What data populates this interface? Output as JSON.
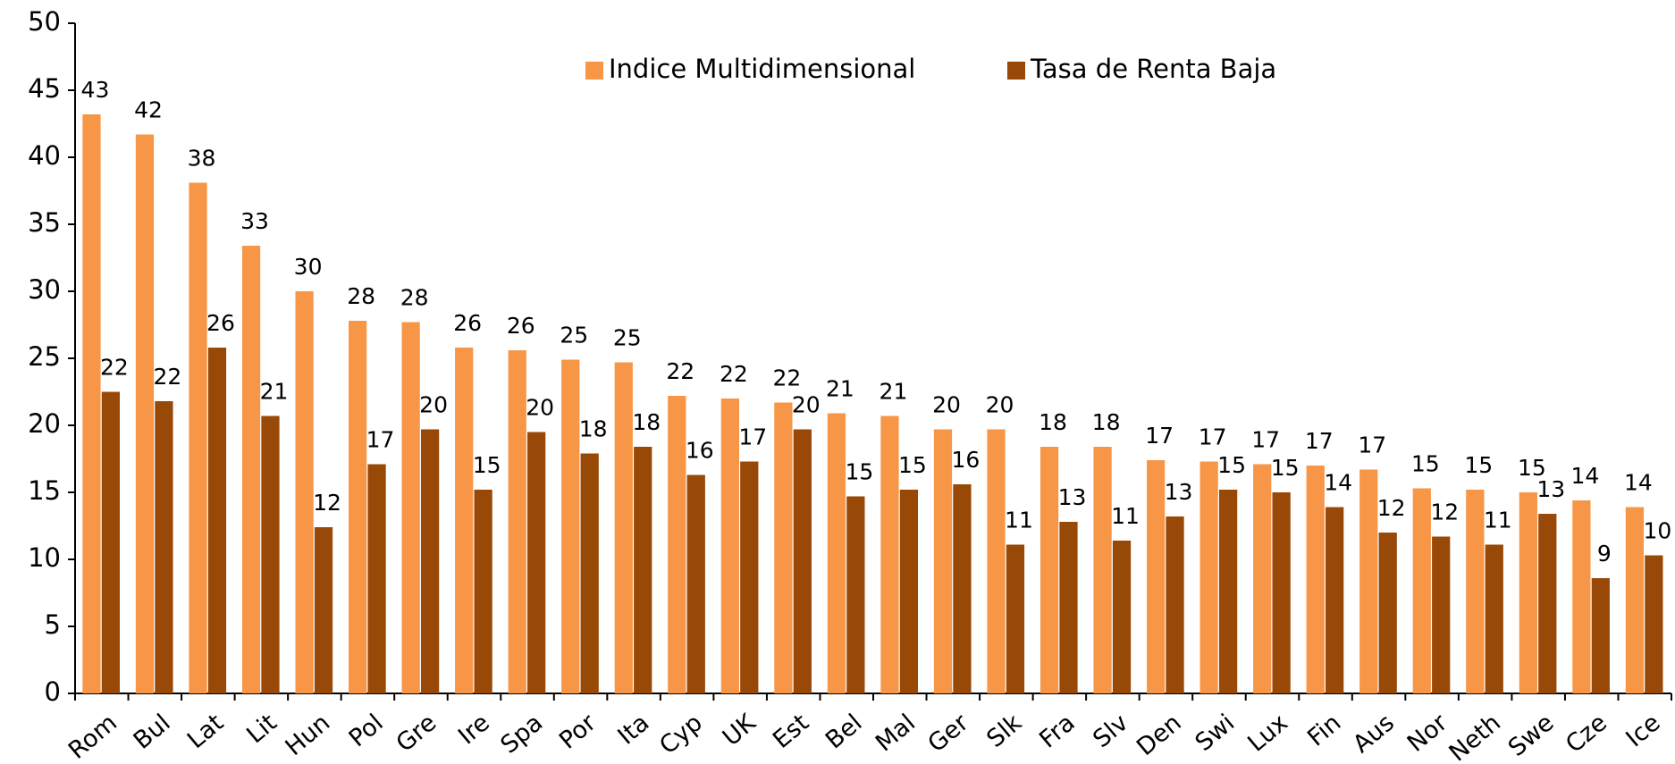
{
  "chart_data": {
    "type": "bar",
    "categories": [
      "Rom",
      "Bul",
      "Lat",
      "Lit",
      "Hun",
      "Pol",
      "Gre",
      "Ire",
      "Spa",
      "Por",
      "Ita",
      "Cyp",
      "UK",
      "Est",
      "Bel",
      "Mal",
      "Ger",
      "Slk",
      "Fra",
      "Slv",
      "Den",
      "Swi",
      "Lux",
      "Fin",
      "Aus",
      "Nor",
      "Neth",
      "Swe",
      "Cze",
      "Ice"
    ],
    "series": [
      {
        "name": "Indice Multidimensional",
        "color": "#f79646",
        "values": [
          43.2,
          41.7,
          38.1,
          33.4,
          30.0,
          27.8,
          27.7,
          25.8,
          25.6,
          24.9,
          24.7,
          22.2,
          22.0,
          21.7,
          20.9,
          20.7,
          19.7,
          19.7,
          18.4,
          18.4,
          17.4,
          17.3,
          17.1,
          17.0,
          16.7,
          15.3,
          15.2,
          15.0,
          14.4,
          13.9
        ],
        "value_labels": [
          "43",
          "42",
          "38",
          "33",
          "30",
          "28",
          "28",
          "26",
          "26",
          "25",
          "25",
          "22",
          "22",
          "22",
          "21",
          "21",
          "20",
          "20",
          "18",
          "18",
          "17",
          "17",
          "17",
          "17",
          "17",
          "15",
          "15",
          "15",
          "14",
          "14"
        ]
      },
      {
        "name": "Tasa de Renta Baja",
        "color": "#984807",
        "values": [
          22.5,
          21.8,
          25.8,
          20.7,
          12.4,
          17.1,
          19.7,
          15.2,
          19.5,
          17.9,
          18.4,
          16.3,
          17.3,
          19.7,
          14.7,
          15.2,
          15.6,
          11.1,
          12.8,
          11.4,
          13.2,
          15.2,
          15.0,
          13.9,
          12.0,
          11.7,
          11.1,
          13.4,
          8.6,
          10.3
        ],
        "value_labels": [
          "22",
          "22",
          "26",
          "21",
          "12",
          "17",
          "20",
          "15",
          "20",
          "18",
          "18",
          "16",
          "17",
          "20",
          "15",
          "15",
          "16",
          "11",
          "13",
          "11",
          "13",
          "15",
          "15",
          "14",
          "12",
          "12",
          "11",
          "13",
          "9",
          "10"
        ]
      }
    ],
    "ylim": [
      0,
      50
    ],
    "yticks": [
      0,
      5,
      10,
      15,
      20,
      25,
      30,
      35,
      40,
      45,
      50
    ],
    "legend": "top",
    "grid": false
  }
}
